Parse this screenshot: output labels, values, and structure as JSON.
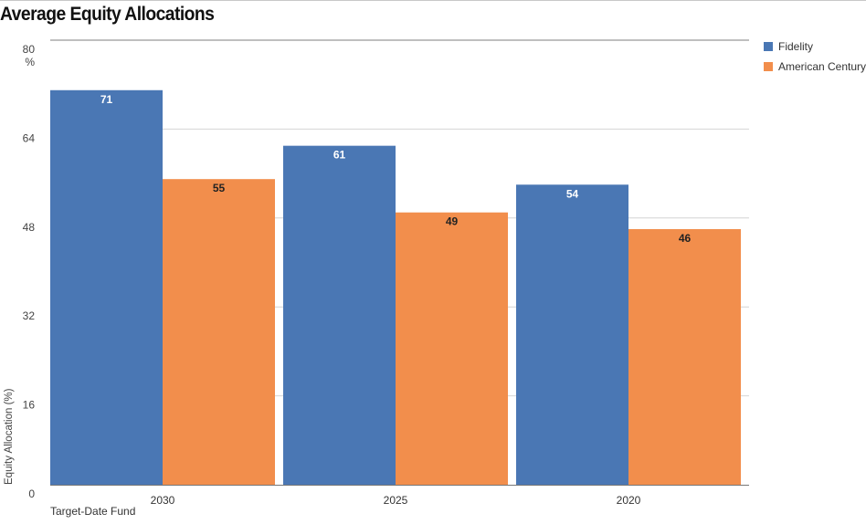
{
  "chart_data": {
    "type": "bar",
    "title": "Average Equity Allocations",
    "xlabel": "Target-Date Fund",
    "ylabel": "Equity Allocation (%)",
    "y_unit": "%",
    "categories": [
      "2030",
      "2025",
      "2020"
    ],
    "series": [
      {
        "name": "Fidelity",
        "values": [
          71,
          61,
          54
        ],
        "color": "#4a77b4"
      },
      {
        "name": "American Century",
        "values": [
          55,
          49,
          46
        ],
        "color": "#f28e4c"
      }
    ],
    "ylim": [
      0,
      80
    ],
    "yticks": [
      0,
      16,
      32,
      48,
      64,
      80
    ],
    "grid": true,
    "legend_position": "top-right"
  }
}
